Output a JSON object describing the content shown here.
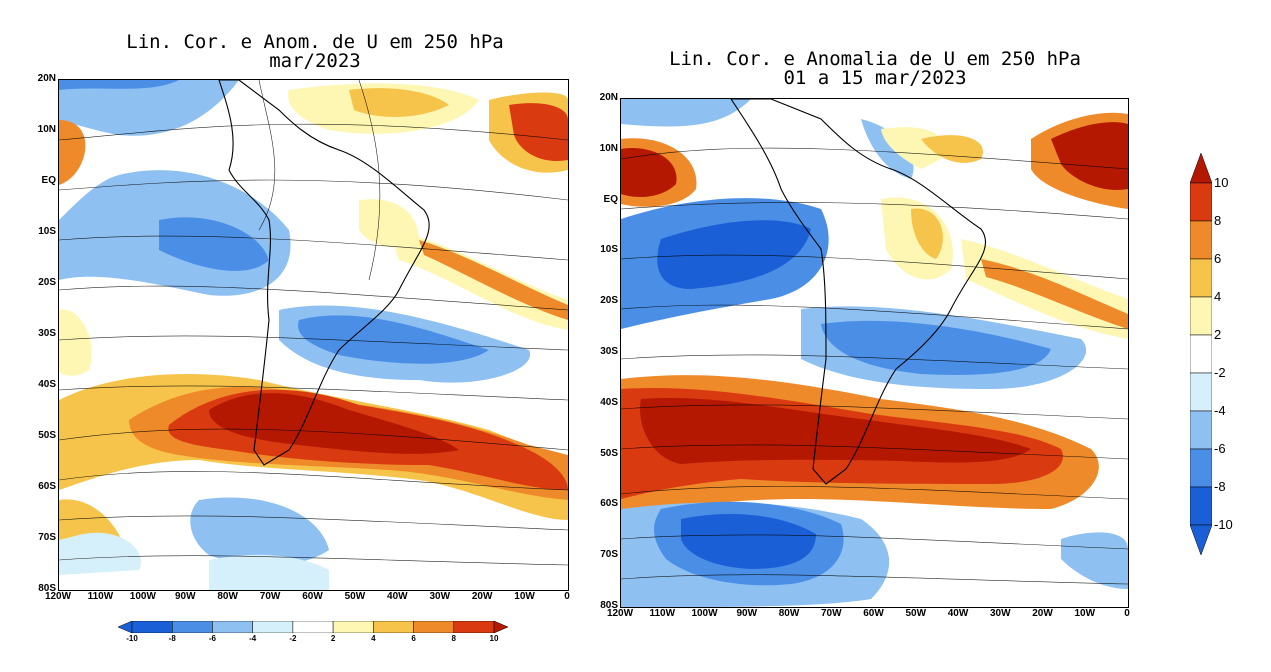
{
  "panels": [
    {
      "title_line1": "Lin. Cor. e Anom. de U em 250 hPa",
      "title_line2": "mar/2023",
      "lat_labels": [
        "20N",
        "10N",
        "EQ",
        "10S",
        "20S",
        "30S",
        "40S",
        "50S",
        "60S",
        "70S",
        "80S"
      ],
      "lon_labels": [
        "120W",
        "110W",
        "100W",
        "90W",
        "80W",
        "70W",
        "60W",
        "50W",
        "40W",
        "30W",
        "20W",
        "10W",
        "0"
      ]
    },
    {
      "title_line1": "Lin. Cor. e Anomalia de U em 250 hPa",
      "title_line2": "01 a 15 mar/2023",
      "lat_labels": [
        "20N",
        "10N",
        "EQ",
        "10S",
        "20S",
        "30S",
        "40S",
        "50S",
        "60S",
        "70S",
        "80S"
      ],
      "lon_labels": [
        "120W",
        "110W",
        "100W",
        "90W",
        "80W",
        "70W",
        "60W",
        "50W",
        "40W",
        "30W",
        "20W",
        "10W",
        "0"
      ]
    }
  ],
  "colorbar_horizontal": {
    "labels": [
      "-10",
      "-8",
      "-6",
      "-4",
      "-2",
      "2",
      "4",
      "6",
      "8",
      "10"
    ]
  },
  "colorbar_vertical": {
    "labels": [
      "10",
      "8",
      "6",
      "4",
      "2",
      "-2",
      "-4",
      "-6",
      "-8",
      "-10"
    ]
  },
  "colors": {
    "strong_neg": "#1a5fd6",
    "neg": "#4a8ee6",
    "mid_neg": "#8ec0f2",
    "weak_neg": "#d6f0fb",
    "neutral": "#ffffff",
    "weak_pos": "#fdf7b3",
    "mid_pos": "#f6c44a",
    "pos": "#ef8a2a",
    "strong_pos": "#d93a10",
    "extreme_pos": "#b41800"
  }
}
